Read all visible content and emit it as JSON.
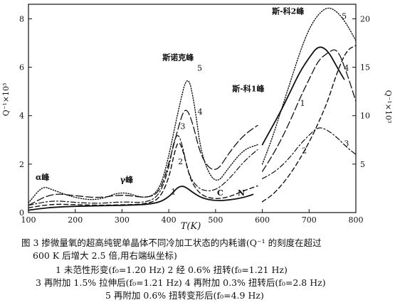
{
  "chart_data": {
    "type": "line",
    "xlabel": "T(K)",
    "ylabel_left": "Q⁻¹×10³",
    "ylabel_right": "Q⁻¹×10³",
    "xlim": [
      100,
      800
    ],
    "ylim_left": [
      0,
      8.6
    ],
    "ylim_right": [
      0,
      21.5
    ],
    "x_ticks": [
      "100",
      "200",
      "300",
      "400",
      "500",
      "600",
      "700",
      "800"
    ],
    "y_ticks_left": [
      "0",
      "2",
      "4",
      "6",
      "8"
    ],
    "y_ticks_right": [
      "5",
      "10",
      "15",
      "20"
    ],
    "annotations": [
      {
        "text": "α峰",
        "x": 130,
        "y": 1.35
      },
      {
        "text": "γ峰",
        "x": 310,
        "y": 1.25
      },
      {
        "text": "斯诺克峰",
        "x": 420,
        "y": 6.3
      },
      {
        "text": "斯-科1峰",
        "x": 570,
        "y": 5.0
      },
      {
        "text": "斯-科2峰",
        "x": 655,
        "y": 8.2
      },
      {
        "text": "C",
        "x": 510,
        "y": 0.7
      },
      {
        "text": "N",
        "x": 555,
        "y": 0.7
      }
    ],
    "series": [
      {
        "name": "1",
        "style": "solid",
        "x": [
          100,
          150,
          200,
          250,
          300,
          350,
          380,
          400,
          410,
          420,
          430,
          440,
          450,
          470,
          500,
          530,
          560,
          580,
          600,
          620,
          640,
          660,
          680,
          700,
          720,
          740,
          760,
          775
        ],
        "y": [
          0.1,
          0.22,
          0.26,
          0.28,
          0.3,
          0.33,
          0.42,
          0.65,
          0.85,
          1.05,
          1.1,
          1.0,
          0.85,
          0.6,
          0.48,
          0.52,
          0.62,
          0.75,
          2.8,
          3.5,
          4.2,
          5.0,
          5.8,
          6.4,
          6.9,
          6.7,
          6.0,
          5.5
        ]
      },
      {
        "name": "2",
        "style": "dashed",
        "x": [
          100,
          150,
          200,
          250,
          300,
          350,
          380,
          400,
          410,
          420,
          430,
          440,
          450,
          470,
          500,
          530,
          560,
          590,
          600,
          620,
          640,
          660,
          680,
          700,
          720,
          740,
          760,
          780,
          800
        ],
        "y": [
          0.2,
          0.35,
          0.33,
          0.3,
          0.32,
          0.35,
          0.55,
          1.4,
          2.3,
          3.0,
          2.6,
          1.8,
          1.2,
          0.7,
          0.55,
          0.65,
          0.9,
          1.1,
          0.45,
          0.7,
          1.1,
          1.6,
          2.2,
          2.9,
          3.7,
          4.6,
          5.8,
          6.7,
          6.9
        ]
      },
      {
        "name": "3",
        "style": "dash-dot",
        "x": [
          100,
          150,
          200,
          250,
          300,
          350,
          380,
          400,
          410,
          420,
          430,
          440,
          450,
          470,
          500,
          530,
          560,
          590,
          600,
          620,
          640,
          660,
          680,
          700,
          720,
          740,
          760,
          780,
          800
        ],
        "y": [
          0.3,
          0.5,
          0.42,
          0.37,
          0.45,
          0.4,
          0.7,
          1.8,
          2.9,
          3.3,
          2.7,
          1.8,
          1.3,
          0.9,
          0.9,
          1.4,
          2.1,
          2.6,
          1.4,
          1.6,
          1.9,
          2.3,
          2.8,
          3.2,
          3.55,
          3.4,
          3.1,
          2.7,
          2.4
        ]
      },
      {
        "name": "4",
        "style": "long-dash",
        "x": [
          100,
          150,
          200,
          250,
          300,
          350,
          380,
          400,
          420,
          435,
          450,
          470,
          500,
          530,
          560,
          590,
          600,
          620,
          640,
          660,
          680,
          700,
          720,
          740,
          760,
          780,
          800
        ],
        "y": [
          0.3,
          0.8,
          0.7,
          0.6,
          0.75,
          0.6,
          0.8,
          2.0,
          3.5,
          4.4,
          3.8,
          2.2,
          1.6,
          2.5,
          3.2,
          3.6,
          1.7,
          2.3,
          3.0,
          3.8,
          4.7,
          5.5,
          6.3,
          6.6,
          6.8,
          5.8,
          4.6
        ]
      },
      {
        "name": "5",
        "style": "dotted",
        "x": [
          100,
          130,
          150,
          200,
          250,
          300,
          350,
          380,
          400,
          420,
          440,
          455,
          470,
          500,
          530,
          560,
          590,
          600,
          620,
          640,
          660,
          680,
          700,
          720,
          740,
          760,
          780,
          800
        ],
        "y": [
          0.4,
          1.1,
          0.95,
          0.6,
          0.5,
          0.9,
          0.55,
          0.9,
          2.3,
          4.2,
          5.8,
          4.5,
          2.3,
          1.1,
          1.9,
          2.6,
          2.8,
          2.0,
          3.0,
          4.2,
          5.4,
          6.6,
          7.6,
          8.2,
          8.5,
          8.3,
          7.8,
          7.1
        ]
      }
    ],
    "series_labels": [
      {
        "text": "1",
        "x": 410,
        "y": 0.75,
        "series": "1"
      },
      {
        "text": "2",
        "x": 425,
        "y": 2.0,
        "series": "2"
      },
      {
        "text": "3",
        "x": 430,
        "y": 3.45,
        "series": "3"
      },
      {
        "text": "4",
        "x": 467,
        "y": 4.05,
        "series": "4"
      },
      {
        "text": "5",
        "x": 466,
        "y": 5.85,
        "series": "5"
      },
      {
        "text": "1",
        "x": 686,
        "y": 4.4,
        "series": "1"
      },
      {
        "text": "2",
        "x": 690,
        "y": 2.45,
        "series": "2"
      },
      {
        "text": "3",
        "x": 780,
        "y": 2.75,
        "series": "3"
      },
      {
        "text": "4",
        "x": 780,
        "y": 5.85,
        "series": "4"
      },
      {
        "text": "5",
        "x": 775,
        "y": 8.0,
        "series": "5"
      }
    ]
  },
  "caption": {
    "line1": "图 3   掺微量氧的超高纯铌单晶体不同冷加工状态的内耗谱(Q⁻¹ 的刻度在超过",
    "line2": "600 K 后增大 2.5 倍,用右端纵坐标)",
    "line3": "1  未范性形变(f₀=1.20 Hz)   2  经 0.6% 扭转(f₀=1.21 Hz)",
    "line4": "3  再附加 1.5% 拉伸后(f₀=1.21 Hz)   4  再附加 0.3% 扭转后(f₀=2.8 Hz)",
    "line5": "5  再附加 0.6% 扭转变形后(f₀=4.9 Hz)"
  }
}
